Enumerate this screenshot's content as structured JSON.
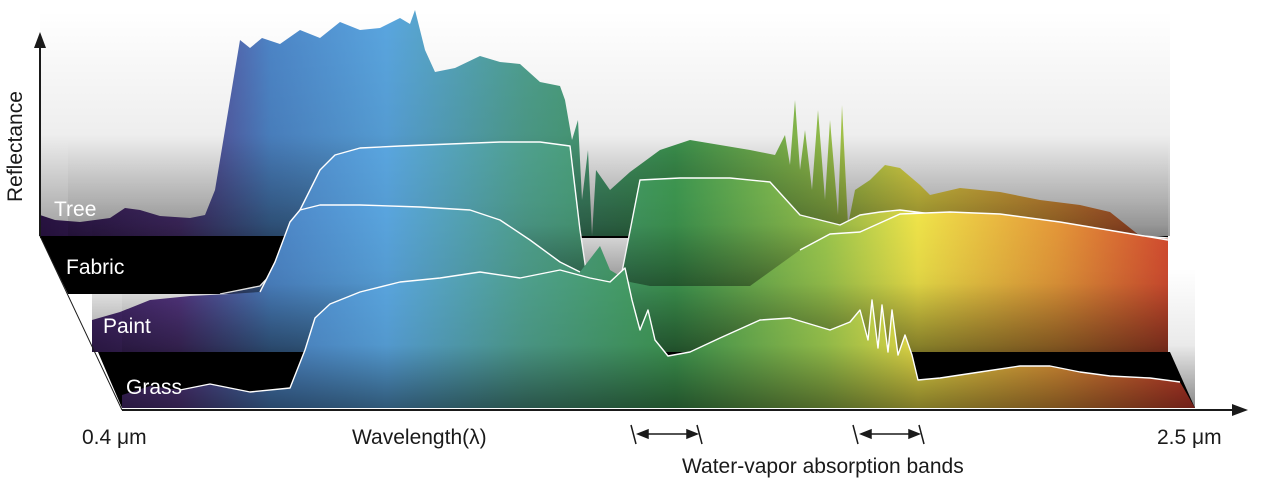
{
  "chart_data": {
    "type": "area",
    "title": "",
    "ylabel": "Reflectance",
    "xlabel": "Wavelength(λ)",
    "x_start_label": "0.4 μm",
    "x_end_label": "2.5 μm",
    "x_range_um": [
      0.4,
      2.5
    ],
    "annotation": "Water-vapor absorption bands",
    "absorption_bands_um": [
      [
        1.35,
        1.45
      ],
      [
        1.8,
        1.95
      ]
    ],
    "series": [
      {
        "name": "Tree"
      },
      {
        "name": "Fabric"
      },
      {
        "name": "Paint"
      },
      {
        "name": "Grass"
      }
    ],
    "colors": {
      "violet": "#3a1a5e",
      "blue": "#5aa6e0",
      "green": "#4a9a4e",
      "yellow": "#f2e64a",
      "orange": "#e89a3a",
      "red": "#d23a2e"
    }
  }
}
